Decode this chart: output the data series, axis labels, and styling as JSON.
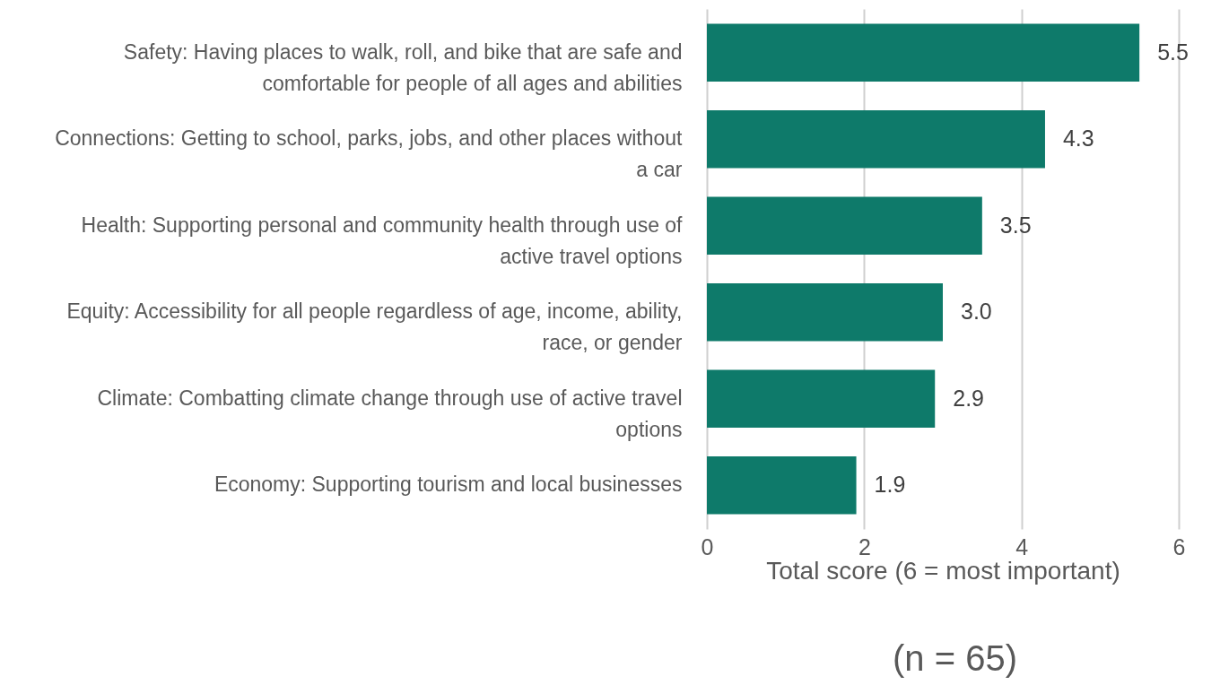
{
  "chart_data": {
    "type": "bar",
    "orientation": "horizontal",
    "categories": [
      "Safety: Having places to walk, roll, and bike that are safe and comfortable for people of all ages and abilities",
      "Connections: Getting to school, parks, jobs, and other places without a car",
      "Health: Supporting personal and community health through use of active travel options",
      "Equity: Accessibility for all people regardless of age, income, ability, race, or gender",
      "Climate: Combatting climate change through use of active travel options",
      "Economy: Supporting tourism and local businesses"
    ],
    "values": [
      5.5,
      4.3,
      3.5,
      3.0,
      2.9,
      1.9
    ],
    "value_labels": [
      "5.5",
      "4.3",
      "3.5",
      "3.0",
      "2.9",
      "1.9"
    ],
    "color": "#0e7a6a",
    "xlim": [
      0,
      6
    ],
    "xticks": [
      0,
      2,
      4,
      6
    ],
    "xlabel": "Total score (6 = most important)",
    "grid": "x",
    "annotations": [
      "(n = 65)"
    ]
  }
}
